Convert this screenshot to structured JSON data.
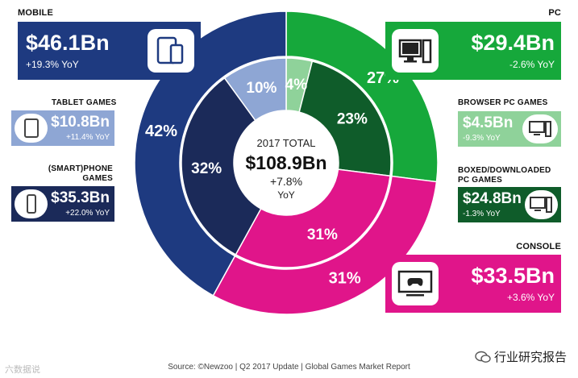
{
  "chart_data": {
    "type": "pie",
    "variant": "nested-donut",
    "center": {
      "label": "2017 TOTAL",
      "value": "$108.9Bn",
      "growth": "+7.8%",
      "growth_unit": "YoY"
    },
    "outer_ring": [
      {
        "name": "MOBILE",
        "percent": 42,
        "value": "$46.1Bn",
        "yoy": "+19.3% YoY",
        "color": "#1e3a80"
      },
      {
        "name": "PC",
        "percent": 27,
        "value": "$29.4Bn",
        "yoy": "-2.6% YoY",
        "color": "#16a83b"
      },
      {
        "name": "CONSOLE",
        "percent": 31,
        "value": "$33.5Bn",
        "yoy": "+3.6% YoY",
        "color": "#e0158a"
      }
    ],
    "inner_ring": [
      {
        "name": "TABLET GAMES",
        "percent": 10,
        "value": "$10.8Bn",
        "yoy": "+11.4% YoY",
        "color": "#8ea6d4"
      },
      {
        "name": "BROWSER PC GAMES",
        "percent": 4,
        "value": "$4.5Bn",
        "yoy": "-9.3% YoY",
        "color": "#8fd29a"
      },
      {
        "name": "BOXED/DOWNLOADED PC GAMES",
        "percent": 23,
        "value": "$24.8Bn",
        "yoy": "-1.3% YoY",
        "color": "#0f5c2a"
      },
      {
        "name": "CONSOLE",
        "percent": 31,
        "value": "$33.5Bn",
        "yoy": "+3.6% YoY",
        "color": "#e0158a"
      },
      {
        "name": "(SMART)PHONE GAMES",
        "percent": 32,
        "value": "$35.3Bn",
        "yoy": "+22.0% YoY",
        "color": "#1b2a59"
      }
    ]
  },
  "labels": {
    "mobile": "MOBILE",
    "pc": "PC",
    "console": "CONSOLE",
    "tablet": "TABLET GAMES",
    "phone_line1": "(SMART)PHONE",
    "phone_line2": "GAMES",
    "browser": "BROWSER PC GAMES",
    "boxed_line1": "BOXED/DOWNLOADED",
    "boxed_line2": "PC GAMES"
  },
  "footer": {
    "source": "Source: ©Newzoo | Q2 2017 Update | Global Games Market Report",
    "watermark_left": "六数据说",
    "watermark_right": "行业研究报告"
  },
  "icons": {
    "mobile": "tablet-phone-icon",
    "pc": "monitor-tower-icon",
    "console": "tv-gamepad-icon",
    "tablet": "tablet-icon",
    "phone": "phone-icon",
    "browser": "monitor-tower-icon",
    "boxed": "monitor-tower-icon"
  }
}
